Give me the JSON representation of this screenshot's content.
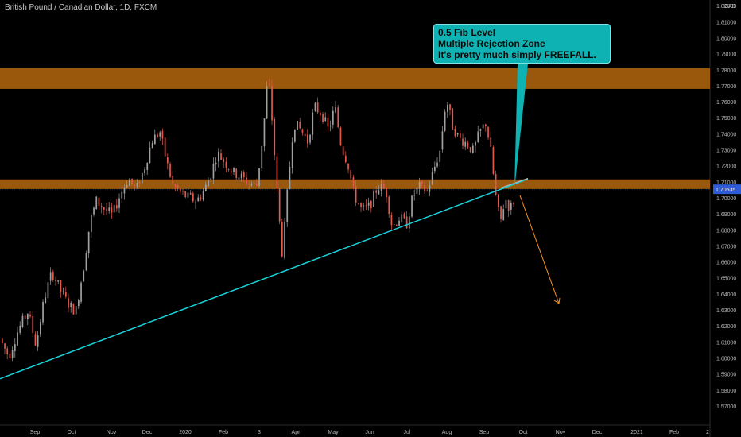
{
  "symbol_title": "British Pound / Canadian Dollar, 1D, FXCM",
  "currency": "CAD",
  "callout": {
    "line1": "0.5 Fib Level",
    "line2": "Multiple Rejection Zone",
    "line3": "It's pretty much simply FREEFALL."
  },
  "colors": {
    "background": "#000000",
    "zone": "#a65f0c",
    "trendline": "#19d3da",
    "callout_bg": "#0fb2b2",
    "projection": "#f39322",
    "up_candle": "#a0a0a0",
    "down_candle": "#e05a4e",
    "price_badge": "#2e5bd6"
  },
  "chart_data": {
    "type": "candlestick",
    "ylim": [
      1.5646,
      1.823
    ],
    "y_ticks": [
      1.57,
      1.58,
      1.59,
      1.6,
      1.61,
      1.62,
      1.63,
      1.64,
      1.65,
      1.66,
      1.67,
      1.68,
      1.69,
      1.7,
      1.71,
      1.72,
      1.73,
      1.74,
      1.75,
      1.76,
      1.77,
      1.78,
      1.79,
      1.8,
      1.81,
      1.82
    ],
    "y_tick_labels": [
      "1.57000",
      "1.58000",
      "1.59000",
      "1.60000",
      "1.61000",
      "1.62000",
      "1.63000",
      "1.64000",
      "1.65000",
      "1.66000",
      "1.67000",
      "1.68000",
      "1.69000",
      "1.70000",
      "1.71000",
      "1.72000",
      "1.73000",
      "1.74000",
      "1.75000",
      "1.76000",
      "1.77000",
      "1.78000",
      "1.79000",
      "1.80000",
      "1.81000",
      "1.82000"
    ],
    "x_ticks": [
      "Sep",
      "Oct",
      "Nov",
      "Dec",
      "2020",
      "Feb",
      "3",
      "Apr",
      "May",
      "Jun",
      "Jul",
      "Aug",
      "Sep",
      "Oct",
      "Nov",
      "Dec",
      "2021",
      "Feb",
      "2"
    ],
    "current_price": "1.70535",
    "zones": [
      {
        "low": 1.768,
        "high": 1.781
      },
      {
        "low": 1.7055,
        "high": 1.7115
      }
    ],
    "trendline": {
      "from": {
        "x": "Aug 2019",
        "y": 1.587
      },
      "to": {
        "x": "Sep 2020",
        "y": 1.71
      }
    },
    "projection": {
      "from": 1.701,
      "to": 1.634
    }
  }
}
